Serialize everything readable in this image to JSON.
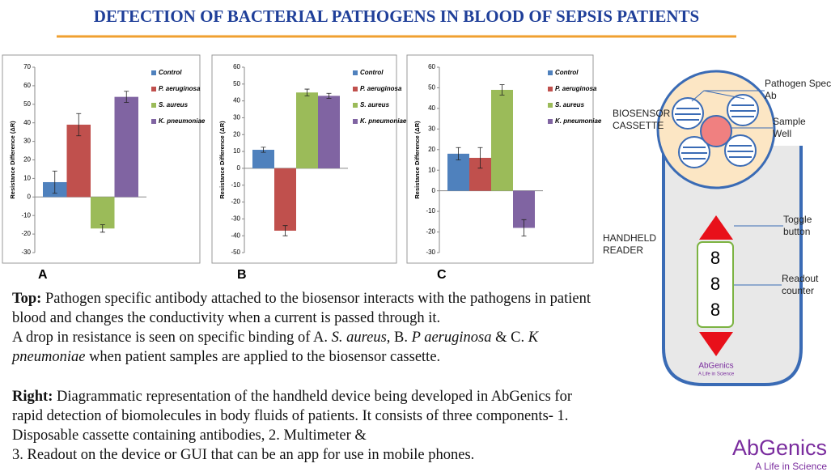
{
  "header": {
    "title": "DETECTION OF BACTERIAL PATHOGENS IN BLOOD OF  SEPSIS PATIENTS"
  },
  "chart_data": [
    {
      "type": "bar",
      "title": "A",
      "y_label": "Resistance Difference (ΔR)",
      "ylim": [
        -30,
        70
      ],
      "yticks": [
        -30,
        -20,
        -10,
        0,
        10,
        20,
        30,
        40,
        50,
        60,
        70
      ],
      "series": [
        {
          "name": "Control",
          "color": "#4f81bd",
          "values": [
            8
          ],
          "errors": [
            6
          ]
        },
        {
          "name": "P. aeruginosa",
          "color": "#c0504d",
          "values": [
            39
          ],
          "errors": [
            6
          ]
        },
        {
          "name": "S. aureus",
          "color": "#9bbb59",
          "values": [
            -17
          ],
          "errors": [
            2
          ]
        },
        {
          "name": "K. pneumoniae",
          "color": "#8064a2",
          "values": [
            54
          ],
          "errors": [
            3
          ]
        }
      ]
    },
    {
      "type": "bar",
      "title": "B",
      "y_label": "Resistance Difference (ΔR)",
      "ylim": [
        -50,
        60
      ],
      "yticks": [
        -50,
        -40,
        -30,
        -20,
        -10,
        0,
        10,
        20,
        30,
        40,
        50,
        60
      ],
      "series": [
        {
          "name": "Control",
          "color": "#4f81bd",
          "values": [
            11
          ],
          "errors": [
            1.5
          ]
        },
        {
          "name": "P. aeruginosa",
          "color": "#c0504d",
          "values": [
            -37
          ],
          "errors": [
            3
          ]
        },
        {
          "name": "S. aureus",
          "color": "#9bbb59",
          "values": [
            45
          ],
          "errors": [
            2
          ]
        },
        {
          "name": "K. pneumoniae",
          "color": "#8064a2",
          "values": [
            43
          ],
          "errors": [
            1.5
          ]
        }
      ]
    },
    {
      "type": "bar",
      "title": "C",
      "y_label": "Resistance Difference (ΔR)",
      "ylim": [
        -30,
        60
      ],
      "yticks": [
        -30,
        -20,
        -10,
        0,
        10,
        20,
        30,
        40,
        50,
        60
      ],
      "series": [
        {
          "name": "Control",
          "color": "#4f81bd",
          "values": [
            18
          ],
          "errors": [
            3
          ]
        },
        {
          "name": "P. aeruginosa",
          "color": "#c0504d",
          "values": [
            16
          ],
          "errors": [
            5
          ]
        },
        {
          "name": "S. aureus",
          "color": "#9bbb59",
          "values": [
            49
          ],
          "errors": [
            2.5
          ]
        },
        {
          "name": "K. pneumoniae",
          "color": "#8064a2",
          "values": [
            -18
          ],
          "errors": [
            4
          ]
        }
      ]
    }
  ],
  "top_text": {
    "label": "Top:",
    "runs": [
      " Pathogen specific antibody attached to the biosensor interacts with the pathogens in patient blood and changes the conductivity when a current is passed through it.",
      "A drop in resistance is seen on specific binding of A. ",
      "S. aureus",
      ", B. ",
      "P aeruginosa",
      " & C. ",
      "K pneumoniae",
      " when patient samples are applied to the biosensor cassette."
    ]
  },
  "right_text": {
    "label": "Right:",
    "runs": [
      "  Diagrammatic representation of the handheld device being developed in AbGenics for rapid detection of biomolecules in body fluids of patients. It consists of three components- 1. Disposable cassette containing antibodies, 2. Multimeter &",
      "3. Readout on the device or GUI that can be an app for use in mobile phones."
    ]
  },
  "diagram": {
    "pathogen_ab": "Pathogen Specific Ab",
    "cassette": "BIOSENSOR CASSETTE",
    "sample_well": "Sample Well",
    "toggle": "Toggle button",
    "reader": "HANDHELD READER",
    "readout": "Readout counter",
    "digits": [
      "8",
      "8",
      "8"
    ],
    "device_logo": "AbGenics",
    "device_tagline": "A Life in Science"
  },
  "logo": {
    "name": "AbGenics",
    "tagline": "A Life in Science"
  }
}
